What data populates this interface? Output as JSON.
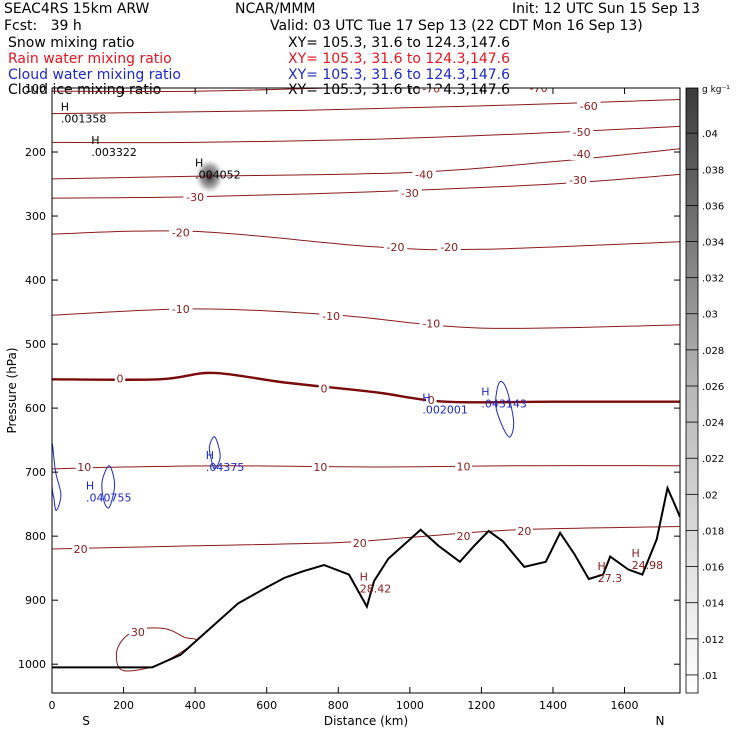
{
  "header": {
    "model": "SEAC4RS 15km ARW",
    "institution": "NCAR/MMM",
    "init": "Init: 12 UTC Sun 15 Sep 13",
    "fcst": "Fcst:   39 h",
    "valid": "Valid: 03 UTC Tue 17 Sep 13 (22 CDT Mon 16 Sep 13)",
    "fields": [
      {
        "name": "Snow mixing ratio",
        "xy": "XY= 105.3, 31.6 to 124.3,147.6",
        "color": "#000000"
      },
      {
        "name": "Rain water mixing ratio",
        "xy": "XY= 105.3, 31.6 to 124.3,147.6",
        "color": "#e8141e"
      },
      {
        "name": "Cloud water mixing ratio",
        "xy": "XY= 105.3, 31.6 to 124.3,147.6",
        "color": "#1e28c8"
      },
      {
        "name": "Cloud ice mixing ratio",
        "xy": "XY= 105.3, 31.6 to 124.3,147.6",
        "color": "#000000"
      }
    ]
  },
  "chart_data": {
    "type": "cross-section",
    "xlabel": "Distance (km)",
    "ylabel": "Pressure (hPa)",
    "xlim": [
      0,
      1755
    ],
    "ylim": [
      1045,
      100
    ],
    "x_ticks": [
      0,
      200,
      400,
      600,
      800,
      1000,
      1200,
      1400,
      1600
    ],
    "y_ticks": [
      200,
      300,
      400,
      500,
      600,
      700,
      800,
      900,
      1000
    ],
    "y_top_label": "100",
    "end_labels": {
      "left": "S",
      "right": "N"
    },
    "colorbar": {
      "unit": "g kg⁻¹",
      "ticks": [
        ".01",
        ".012",
        ".014",
        ".016",
        ".018",
        ".02",
        ".022",
        ".024",
        ".026",
        ".028",
        ".03",
        ".032",
        ".034",
        ".036",
        ".038",
        ".04"
      ],
      "values": [
        0.01,
        0.012,
        0.014,
        0.016,
        0.018,
        0.02,
        0.022,
        0.024,
        0.026,
        0.028,
        0.03,
        0.032,
        0.034,
        0.036,
        0.038,
        0.04
      ]
    },
    "colors": {
      "temperature": "#8b1a1a",
      "freezing": "#7a0a0a",
      "cloud_water": "#1e28c8",
      "terrain": "#000000",
      "ice_shade": "#333333"
    },
    "temperature_contours": [
      {
        "label": "-70",
        "points": [
          [
            0,
            105
          ],
          [
            400,
            105
          ],
          [
            900,
            98
          ],
          [
            1300,
            92
          ],
          [
            1755,
            85
          ]
        ],
        "label_positions": [
          [
            1060,
            101
          ],
          [
            1360,
            100
          ]
        ]
      },
      {
        "label": "-60",
        "points": [
          [
            0,
            140
          ],
          [
            300,
            138
          ],
          [
            700,
            135
          ],
          [
            1200,
            128
          ],
          [
            1755,
            118
          ]
        ],
        "label_positions": [
          [
            1500,
            128
          ]
        ]
      },
      {
        "label": "-50",
        "points": [
          [
            0,
            185
          ],
          [
            400,
            185
          ],
          [
            900,
            180
          ],
          [
            1300,
            172
          ],
          [
            1755,
            160
          ]
        ],
        "label_positions": [
          [
            1480,
            169
          ]
        ]
      },
      {
        "label": "-40",
        "points": [
          [
            0,
            242
          ],
          [
            400,
            238
          ],
          [
            1000,
            232
          ],
          [
            1400,
            215
          ],
          [
            1755,
            195
          ]
        ],
        "label_positions": [
          [
            1040,
            235
          ],
          [
            1480,
            203
          ]
        ]
      },
      {
        "label": "-30",
        "points": [
          [
            0,
            272
          ],
          [
            400,
            270
          ],
          [
            900,
            262
          ],
          [
            1400,
            250
          ],
          [
            1755,
            235
          ]
        ],
        "label_positions": [
          [
            400,
            270
          ],
          [
            1000,
            264
          ],
          [
            1470,
            244
          ]
        ]
      },
      {
        "label": "-20",
        "points": [
          [
            0,
            328
          ],
          [
            400,
            324
          ],
          [
            900,
            348
          ],
          [
            1200,
            352
          ],
          [
            1755,
            340
          ]
        ],
        "label_positions": [
          [
            360,
            326
          ],
          [
            960,
            348
          ],
          [
            1110,
            348
          ]
        ]
      },
      {
        "label": "-10",
        "points": [
          [
            0,
            455
          ],
          [
            400,
            445
          ],
          [
            800,
            455
          ],
          [
            1200,
            475
          ],
          [
            1755,
            470
          ]
        ],
        "label_positions": [
          [
            360,
            445
          ],
          [
            780,
            456
          ],
          [
            1060,
            468
          ]
        ]
      },
      {
        "label": "0",
        "points": [
          [
            0,
            555
          ],
          [
            300,
            555
          ],
          [
            450,
            545
          ],
          [
            650,
            560
          ],
          [
            900,
            575
          ],
          [
            1100,
            590
          ],
          [
            1400,
            590
          ],
          [
            1755,
            590
          ]
        ],
        "label_positions": [
          [
            190,
            554
          ],
          [
            760,
            569
          ],
          [
            1060,
            587
          ]
        ]
      },
      {
        "label": "10",
        "points": [
          [
            0,
            695
          ],
          [
            200,
            692
          ],
          [
            500,
            690
          ],
          [
            900,
            692
          ],
          [
            1300,
            690
          ],
          [
            1755,
            690
          ]
        ],
        "label_positions": [
          [
            90,
            692
          ],
          [
            750,
            692
          ],
          [
            1150,
            691
          ]
        ]
      },
      {
        "label": "20",
        "points": [
          [
            0,
            820
          ],
          [
            400,
            815
          ],
          [
            800,
            810
          ],
          [
            1000,
            802
          ],
          [
            1300,
            790
          ],
          [
            1755,
            785
          ]
        ],
        "label_positions": [
          [
            80,
            820
          ],
          [
            860,
            811
          ],
          [
            1150,
            800
          ],
          [
            1320,
            792
          ]
        ]
      }
    ],
    "closed_contours": [
      {
        "label": "30",
        "points": [
          [
            200,
            1010
          ],
          [
            300,
            1000
          ],
          [
            400,
            965
          ],
          [
            370,
            958
          ],
          [
            320,
            945
          ],
          [
            250,
            945
          ],
          [
            200,
            960
          ],
          [
            180,
            985
          ]
        ],
        "label_positions": [
          [
            240,
            950
          ]
        ]
      }
    ],
    "terrain": [
      [
        0,
        1005
      ],
      [
        280,
        1005
      ],
      [
        360,
        985
      ],
      [
        420,
        955
      ],
      [
        520,
        905
      ],
      [
        600,
        880
      ],
      [
        650,
        865
      ],
      [
        700,
        855
      ],
      [
        760,
        845
      ],
      [
        830,
        860
      ],
      [
        880,
        910
      ],
      [
        900,
        870
      ],
      [
        940,
        835
      ],
      [
        990,
        810
      ],
      [
        1030,
        790
      ],
      [
        1080,
        815
      ],
      [
        1140,
        840
      ],
      [
        1180,
        815
      ],
      [
        1220,
        792
      ],
      [
        1260,
        808
      ],
      [
        1320,
        848
      ],
      [
        1380,
        840
      ],
      [
        1420,
        795
      ],
      [
        1460,
        828
      ],
      [
        1500,
        867
      ],
      [
        1540,
        860
      ],
      [
        1560,
        832
      ],
      [
        1610,
        852
      ],
      [
        1650,
        860
      ],
      [
        1690,
        805
      ],
      [
        1720,
        725
      ],
      [
        1740,
        750
      ],
      [
        1755,
        770
      ]
    ],
    "cloud_water_contours": [
      [
        [
          0,
          655
        ],
        [
          10,
          700
        ],
        [
          25,
          735
        ],
        [
          12,
          760
        ],
        [
          5,
          740
        ],
        [
          0,
          720
        ]
      ],
      [
        [
          140,
          715
        ],
        [
          160,
          690
        ],
        [
          175,
          720
        ],
        [
          160,
          755
        ],
        [
          145,
          745
        ]
      ],
      [
        [
          440,
          660
        ],
        [
          455,
          645
        ],
        [
          470,
          675
        ],
        [
          455,
          695
        ],
        [
          445,
          680
        ]
      ],
      [
        [
          1240,
          595
        ],
        [
          1250,
          560
        ],
        [
          1270,
          570
        ],
        [
          1290,
          620
        ],
        [
          1280,
          645
        ],
        [
          1260,
          630
        ]
      ]
    ],
    "ice_shading": {
      "center": [
        440,
        238
      ],
      "radius_km": 40,
      "value": 0.04
    },
    "extrema": [
      {
        "symbol": "H",
        "value": ".001358",
        "x": 25,
        "p": 148,
        "color": "#000000"
      },
      {
        "symbol": "H",
        "value": ".003322",
        "x": 110,
        "p": 200,
        "color": "#000000"
      },
      {
        "symbol": "H",
        "value": ".004052",
        "x": 400,
        "p": 235,
        "color": "#000000"
      },
      {
        "symbol": "H",
        "value": ".04375",
        "x": 430,
        "p": 692,
        "color": "#1e28c8"
      },
      {
        "symbol": "H",
        "value": ".040755",
        "x": 95,
        "p": 740,
        "color": "#1e28c8"
      },
      {
        "symbol": "H",
        "value": ".002001",
        "x": 1035,
        "p": 602,
        "color": "#1e28c8"
      },
      {
        "symbol": "H",
        "value": ".043143",
        "x": 1200,
        "p": 593,
        "color": "#1e28c8"
      },
      {
        "symbol": "H",
        "value": "28.42",
        "x": 860,
        "p": 882,
        "color": "#8b1a1a"
      },
      {
        "symbol": "H",
        "value": "27.3",
        "x": 1525,
        "p": 865,
        "color": "#8b1a1a"
      },
      {
        "symbol": "H",
        "value": "24.98",
        "x": 1620,
        "p": 845,
        "color": "#8b1a1a"
      }
    ]
  }
}
